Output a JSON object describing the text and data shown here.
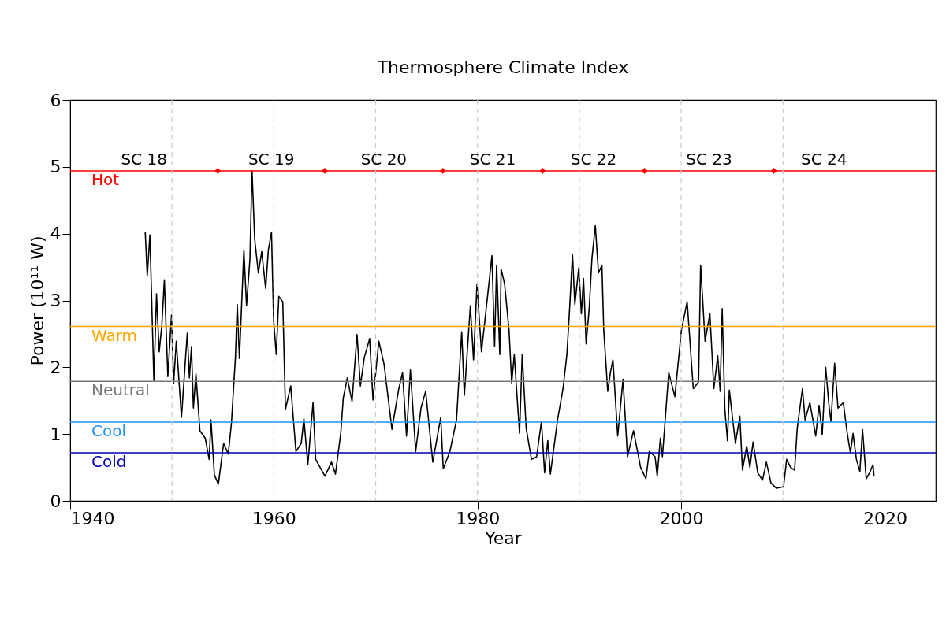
{
  "chart_data": {
    "type": "line",
    "title": "Thermosphere Climate Index",
    "xlabel": "Year",
    "ylabel": "Power (10¹¹ W)",
    "xlim": [
      1940,
      2025
    ],
    "xticks": [
      1940,
      1960,
      1980,
      2000,
      2020
    ],
    "ylim": [
      0,
      6
    ],
    "yticks": [
      0,
      1,
      2,
      3,
      4,
      5,
      6
    ],
    "grid": false,
    "series": [
      {
        "type": "line",
        "color": "#000000",
        "x": [
          1947.37,
          1947.57,
          1947.83,
          1948.22,
          1948.48,
          1948.74,
          1949.0,
          1949.25,
          1949.59,
          1949.95,
          1950.16,
          1950.42,
          1950.93,
          1951.5,
          1951.71,
          1951.91,
          1952.1,
          1952.35,
          1952.74,
          1953.26,
          1953.65,
          1953.83,
          1954.16,
          1954.55,
          1955.07,
          1955.53,
          1955.84,
          1956.23,
          1956.41,
          1956.62,
          1957.06,
          1957.32,
          1957.65,
          1957.86,
          1958.12,
          1958.48,
          1958.81,
          1959.2,
          1959.46,
          1959.77,
          1959.98,
          1960.24,
          1960.49,
          1960.88,
          1961.14,
          1961.66,
          1962.17,
          1962.69,
          1962.95,
          1963.34,
          1963.85,
          1964.11,
          1965.02,
          1965.66,
          1966.05,
          1966.57,
          1966.82,
          1967.21,
          1967.68,
          1968.17,
          1968.5,
          1968.89,
          1969.41,
          1969.74,
          1970.31,
          1970.83,
          1971.6,
          1972.25,
          1972.64,
          1973.03,
          1973.41,
          1973.93,
          1974.45,
          1974.91,
          1975.61,
          1976.39,
          1976.64,
          1977.29,
          1977.94,
          1978.45,
          1978.71,
          1979.3,
          1979.61,
          1979.95,
          1980.39,
          1980.9,
          1981.42,
          1981.68,
          1981.88,
          1982.19,
          1982.32,
          1982.66,
          1983.1,
          1983.36,
          1983.61,
          1984.13,
          1984.39,
          1984.78,
          1985.3,
          1985.81,
          1986.28,
          1986.59,
          1986.9,
          1987.16,
          1987.88,
          1988.4,
          1988.78,
          1989.04,
          1989.33,
          1989.56,
          1989.95,
          1990.2,
          1990.41,
          1990.67,
          1990.98,
          1991.24,
          1991.57,
          1991.88,
          1992.22,
          1992.4,
          1992.79,
          1993.05,
          1993.3,
          1993.77,
          1994.29,
          1994.73,
          1995.32,
          1996.02,
          1996.54,
          1996.87,
          1997.44,
          1997.65,
          1997.96,
          1998.16,
          1998.78,
          1999.38,
          2000.02,
          2000.59,
          2001.19,
          2001.71,
          2001.91,
          2002.35,
          2002.82,
          2003.21,
          2003.59,
          2003.83,
          2004.03,
          2004.29,
          2004.55,
          2004.73,
          2005.33,
          2005.76,
          2006.02,
          2006.44,
          2006.75,
          2007.06,
          2007.52,
          2007.99,
          2008.37,
          2008.81,
          2009.33,
          2010.05,
          2010.36,
          2010.75,
          2011.14,
          2011.4,
          2011.91,
          2012.17,
          2012.64,
          2013.21,
          2013.54,
          2013.85,
          2014.19,
          2014.5,
          2014.71,
          2015.07,
          2015.4,
          2015.92,
          2016.31,
          2016.62,
          2016.88,
          2017.21,
          2017.55,
          2017.81,
          2018.17,
          2018.5,
          2018.84,
          2018.94
        ],
        "values": [
          4.03,
          3.37,
          3.98,
          1.8,
          3.1,
          2.23,
          2.63,
          3.31,
          1.86,
          2.78,
          1.76,
          2.39,
          1.25,
          2.51,
          1.84,
          2.31,
          1.39,
          1.9,
          1.05,
          0.94,
          0.62,
          1.21,
          0.39,
          0.25,
          0.86,
          0.7,
          1.17,
          2.15,
          2.94,
          2.13,
          3.75,
          2.92,
          3.61,
          4.94,
          3.92,
          3.41,
          3.73,
          3.18,
          3.75,
          4.02,
          2.7,
          2.19,
          3.06,
          2.98,
          1.37,
          1.72,
          0.74,
          0.86,
          1.23,
          0.54,
          1.47,
          0.62,
          0.37,
          0.58,
          0.4,
          1.01,
          1.54,
          1.84,
          1.49,
          2.49,
          1.72,
          2.15,
          2.43,
          1.51,
          2.39,
          2.04,
          1.07,
          1.66,
          1.92,
          0.97,
          1.96,
          0.74,
          1.39,
          1.64,
          0.58,
          1.25,
          0.48,
          0.74,
          1.21,
          2.53,
          1.58,
          2.92,
          2.11,
          3.24,
          2.23,
          2.94,
          3.67,
          2.31,
          3.53,
          2.19,
          3.47,
          3.25,
          2.55,
          1.76,
          2.19,
          1.01,
          2.19,
          1.09,
          0.62,
          0.66,
          1.19,
          0.42,
          0.9,
          0.4,
          1.23,
          1.68,
          2.19,
          2.86,
          3.69,
          2.94,
          3.49,
          2.8,
          3.33,
          2.35,
          2.9,
          3.63,
          4.12,
          3.41,
          3.53,
          2.55,
          1.64,
          1.92,
          2.11,
          0.97,
          1.82,
          0.66,
          1.05,
          0.5,
          0.33,
          0.74,
          0.66,
          0.37,
          0.94,
          0.66,
          1.92,
          1.56,
          2.55,
          2.98,
          1.68,
          1.78,
          3.53,
          2.39,
          2.8,
          1.68,
          2.17,
          1.64,
          2.88,
          1.37,
          0.9,
          1.66,
          0.86,
          1.27,
          0.46,
          0.82,
          0.5,
          0.88,
          0.42,
          0.31,
          0.58,
          0.27,
          0.19,
          0.21,
          0.62,
          0.5,
          0.46,
          1.09,
          1.68,
          1.21,
          1.47,
          0.97,
          1.43,
          0.99,
          2.0,
          1.45,
          1.19,
          2.06,
          1.39,
          1.47,
          1.01,
          0.72,
          1.01,
          0.62,
          0.44,
          1.07,
          0.33,
          0.42,
          0.54,
          0.37
        ]
      },
      {
        "type": "scatter",
        "marker": "diamond",
        "color": "#ff0000",
        "x": [
          1954.5,
          1965.0,
          1976.6,
          1986.4,
          1996.4,
          2009.1
        ],
        "values": [
          4.94,
          4.94,
          4.94,
          4.94,
          4.94,
          4.94
        ]
      }
    ],
    "ref_lines": [
      {
        "axis": "y",
        "value": 4.94,
        "label": "Hot",
        "color": "#ff0000"
      },
      {
        "axis": "y",
        "value": 2.61,
        "label": "Warm",
        "color": "#ffa500"
      },
      {
        "axis": "y",
        "value": 1.79,
        "label": "Neutral",
        "color": "#787878"
      },
      {
        "axis": "y",
        "value": 1.18,
        "label": "Cool",
        "color": "#1e90ff"
      },
      {
        "axis": "y",
        "value": 0.72,
        "label": "Cold",
        "color": "#0000b4"
      },
      {
        "axis": "x",
        "value": 1950,
        "color": "#c8c8c8",
        "line_style": "dashed"
      },
      {
        "axis": "x",
        "value": 1960,
        "color": "#c8c8c8",
        "line_style": "dashed"
      },
      {
        "axis": "x",
        "value": 1970,
        "color": "#c8c8c8",
        "line_style": "dashed"
      },
      {
        "axis": "x",
        "value": 1980,
        "color": "#c8c8c8",
        "line_style": "dashed"
      },
      {
        "axis": "x",
        "value": 1990,
        "color": "#c8c8c8",
        "line_style": "dashed"
      },
      {
        "axis": "x",
        "value": 2000,
        "color": "#c8c8c8",
        "line_style": "dashed"
      },
      {
        "axis": "x",
        "value": 2010,
        "color": "#c8c8c8",
        "line_style": "dashed"
      }
    ],
    "annotations": [
      "SC 18",
      "SC 19",
      "SC 20",
      "SC 21",
      "SC 22",
      "SC 23",
      "SC 24"
    ]
  }
}
